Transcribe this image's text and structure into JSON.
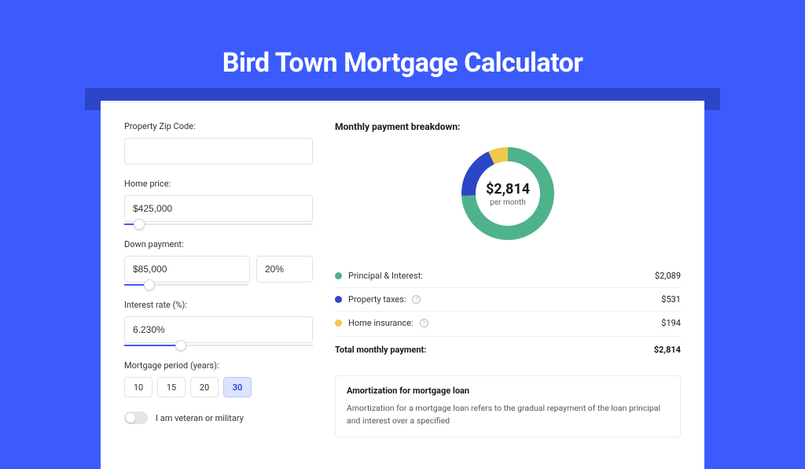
{
  "page": {
    "title": "Bird Town Mortgage Calculator",
    "background_color": "#3b5bfd",
    "card_background": "#ffffff"
  },
  "inputs": {
    "zip": {
      "label": "Property Zip Code:",
      "value": ""
    },
    "home_price": {
      "label": "Home price:",
      "value": "$425,000",
      "slider_pct": 8
    },
    "down_payment": {
      "label": "Down payment:",
      "value": "$85,000",
      "pct_value": "20%",
      "slider_pct": 20
    },
    "interest_rate": {
      "label": "Interest rate (%):",
      "value": "6.230%",
      "slider_pct": 30
    },
    "period": {
      "label": "Mortgage period (years):",
      "options": [
        "10",
        "15",
        "20",
        "30"
      ],
      "selected": "30"
    },
    "veteran": {
      "label": "I am veteran or military",
      "checked": false
    }
  },
  "breakdown": {
    "title": "Monthly payment breakdown:",
    "donut": {
      "amount": "$2,814",
      "sub": "per month",
      "slices": [
        {
          "key": "pi",
          "value": 2089,
          "color": "#4eb38a"
        },
        {
          "key": "tax",
          "value": 531,
          "color": "#2c46c8"
        },
        {
          "key": "ins",
          "value": 194,
          "color": "#f2c84b"
        }
      ],
      "stroke_width": 18
    },
    "legend": [
      {
        "label": "Principal & Interest:",
        "value": "$2,089",
        "color": "#4eb38a",
        "info": false
      },
      {
        "label": "Property taxes:",
        "value": "$531",
        "color": "#2c46c8",
        "info": true
      },
      {
        "label": "Home insurance:",
        "value": "$194",
        "color": "#f2c84b",
        "info": true
      }
    ],
    "total": {
      "label": "Total monthly payment:",
      "value": "$2,814"
    }
  },
  "amortization": {
    "title": "Amortization for mortgage loan",
    "text": "Amortization for a mortgage loan refers to the gradual repayment of the loan principal and interest over a specified"
  }
}
